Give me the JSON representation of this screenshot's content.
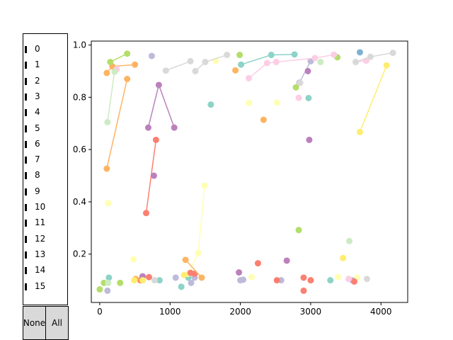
{
  "legend": {
    "items": [
      "0",
      "1",
      "2",
      "3",
      "4",
      "5",
      "6",
      "7",
      "8",
      "9",
      "10",
      "11",
      "12",
      "13",
      "14",
      "15"
    ],
    "none_label": "None",
    "all_label": "All"
  },
  "chart_data": {
    "type": "line",
    "title": "",
    "xlabel": "",
    "ylabel": "",
    "xlim": [
      -120,
      4380
    ],
    "ylim": [
      0.015,
      1.015
    ],
    "grid": false,
    "xticks": [
      0,
      1000,
      2000,
      3000,
      4000
    ],
    "yticks": [
      0.2,
      0.4,
      0.6,
      0.8,
      1.0
    ],
    "xtick_labels": [
      "0",
      "1000",
      "2000",
      "3000",
      "4000"
    ],
    "ytick_labels": [
      "0.2",
      "0.4",
      "0.6",
      "0.8",
      "1.0"
    ],
    "series": [
      {
        "color": "#8dd3c7",
        "lines": [
          [
            [
              2010,
              0.925
            ],
            [
              2440,
              0.962
            ],
            [
              2770,
              0.964
            ]
          ]
        ],
        "points": [
          [
            130,
            0.11
          ],
          [
            850,
            0.1
          ],
          [
            1160,
            0.075
          ],
          [
            1260,
            0.11
          ],
          [
            1580,
            0.772
          ],
          [
            2970,
            0.797
          ],
          [
            3280,
            0.1
          ]
        ]
      },
      {
        "color": "#ffffb3",
        "lines": [
          [
            [
              1260,
              0.125
            ],
            [
              1400,
              0.204
            ],
            [
              1490,
              0.462
            ]
          ]
        ],
        "points": [
          [
            120,
            0.395
          ],
          [
            480,
            0.18
          ],
          [
            1650,
            0.94
          ],
          [
            2120,
            0.778
          ],
          [
            2160,
            0.112
          ],
          [
            2520,
            0.78
          ],
          [
            3390,
            0.112
          ],
          [
            3660,
            0.11
          ]
        ]
      },
      {
        "color": "#bebada",
        "lines": [
          [
            [
              2840,
              0.856
            ],
            [
              3000,
              0.938
            ]
          ]
        ],
        "points": [
          [
            110,
            0.06
          ],
          [
            610,
            0.1
          ],
          [
            740,
            0.958
          ],
          [
            1080,
            0.11
          ],
          [
            1300,
            0.09
          ],
          [
            1350,
            0.11
          ],
          [
            2000,
            0.1
          ],
          [
            2040,
            0.102
          ],
          [
            2580,
            0.1
          ],
          [
            3590,
            0.1
          ]
        ]
      },
      {
        "color": "#fb8072",
        "lines": [
          [
            [
              660,
              0.357
            ],
            [
              800,
              0.637
            ]
          ]
        ],
        "points": [
          [
            580,
            0.1
          ],
          [
            700,
            0.112
          ],
          [
            1290,
            0.128
          ],
          [
            1350,
            0.125
          ],
          [
            2250,
            0.165
          ],
          [
            2520,
            0.1
          ],
          [
            2900,
            0.11
          ],
          [
            2900,
            0.06
          ],
          [
            3000,
            0.1
          ],
          [
            3620,
            0.095
          ]
        ]
      },
      {
        "color": "#80b1d3",
        "lines": [],
        "points": [
          [
            3700,
            0.972
          ]
        ]
      },
      {
        "color": "#fdb462",
        "lines": [
          [
            [
              100,
              0.893
            ],
            [
              180,
              0.918
            ],
            [
              500,
              0.925
            ]
          ],
          [
            [
              100,
              0.527
            ],
            [
              390,
              0.87
            ]
          ],
          [
            [
              1220,
              0.178
            ],
            [
              1450,
              0.11
            ]
          ]
        ],
        "points": [
          [
            510,
            0.105
          ],
          [
            1930,
            0.903
          ],
          [
            2330,
            0.714
          ]
        ]
      },
      {
        "color": "#b3de69",
        "lines": [
          [
            [
              150,
              0.935
            ],
            [
              390,
              0.967
            ]
          ]
        ],
        "points": [
          [
            0,
            0.065
          ],
          [
            60,
            0.09
          ],
          [
            290,
            0.09
          ],
          [
            1990,
            0.962
          ],
          [
            2790,
            0.838
          ],
          [
            2830,
            0.292
          ],
          [
            3380,
            0.953
          ]
        ]
      },
      {
        "color": "#fccde5",
        "lines": [
          [
            [
              2120,
              0.873
            ],
            [
              2380,
              0.931
            ],
            [
              2510,
              0.935
            ],
            [
              3060,
              0.95
            ],
            [
              3330,
              0.963
            ]
          ],
          [
            [
              3640,
              0.935
            ],
            [
              3790,
              0.94
            ]
          ]
        ],
        "points": [
          [
            240,
            0.907
          ],
          [
            2830,
            0.798
          ],
          [
            3540,
            0.105
          ]
        ]
      },
      {
        "color": "#d9d9d9",
        "lines": [
          [
            [
              940,
              0.902
            ],
            [
              1290,
              0.938
            ]
          ],
          [
            [
              1360,
              0.9
            ],
            [
              1500,
              0.935
            ],
            [
              1810,
              0.962
            ]
          ],
          [
            [
              3640,
              0.935
            ],
            [
              3850,
              0.955
            ],
            [
              4170,
              0.97
            ]
          ]
        ],
        "points": [
          [
            780,
            0.1
          ],
          [
            2850,
            0.855
          ],
          [
            3800,
            0.105
          ]
        ]
      },
      {
        "color": "#bc80bd",
        "lines": [
          [
            [
              690,
              0.684
            ],
            [
              840,
              0.847
            ],
            [
              1060,
              0.684
            ]
          ]
        ],
        "points": [
          [
            770,
            0.5
          ],
          [
            610,
            0.115
          ],
          [
            1980,
            0.13
          ],
          [
            2660,
            0.175
          ],
          [
            2960,
            0.9
          ],
          [
            2980,
            0.637
          ]
        ]
      },
      {
        "color": "#ccebc5",
        "lines": [
          [
            [
              110,
              0.705
            ],
            [
              210,
              0.898
            ]
          ]
        ],
        "points": [
          [
            120,
            0.09
          ],
          [
            3550,
            0.25
          ],
          [
            3140,
            0.935
          ]
        ]
      },
      {
        "color": "#ffed6f",
        "lines": [
          [
            [
              3700,
              0.667
            ],
            [
              4080,
              0.922
            ]
          ]
        ],
        "points": [
          [
            490,
            0.1
          ],
          [
            610,
            0.1
          ],
          [
            1200,
            0.12
          ],
          [
            3460,
            0.185
          ]
        ]
      }
    ]
  }
}
